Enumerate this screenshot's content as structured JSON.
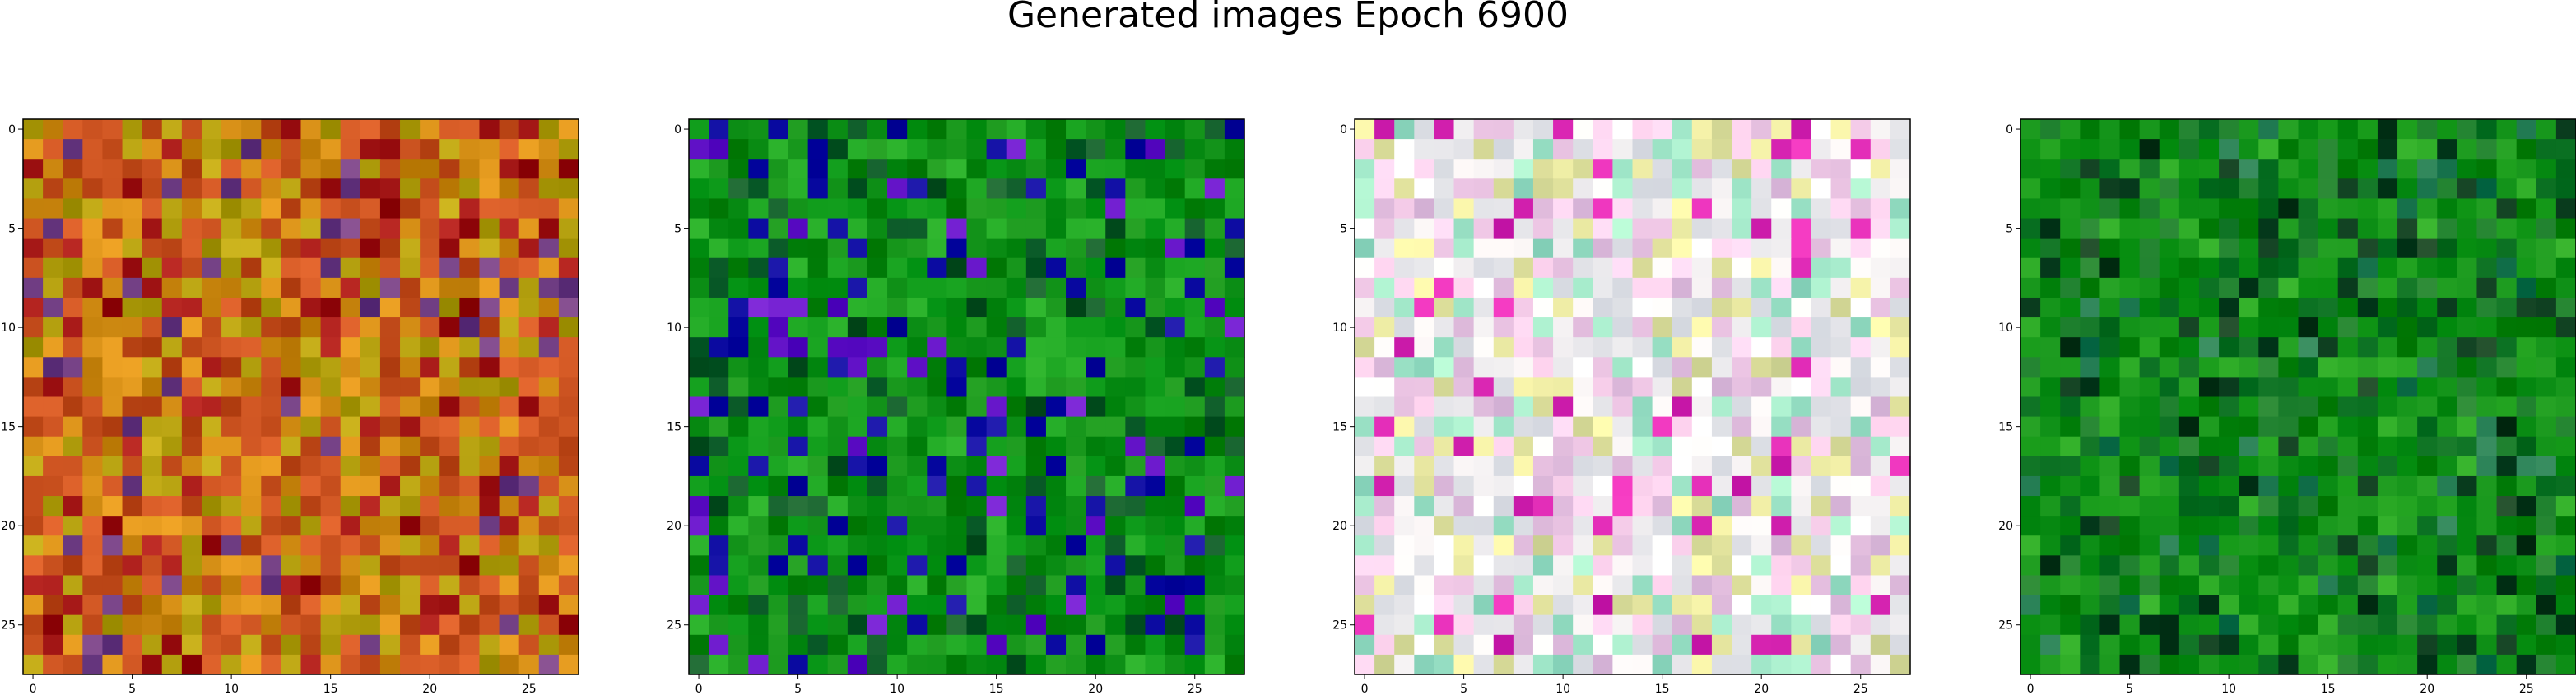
{
  "figure": {
    "title": "Generated images Epoch 6900"
  },
  "chart_data": [
    {
      "type": "heatmap",
      "grid": [
        28,
        28
      ],
      "title": "",
      "xlabel": "",
      "ylabel": "",
      "xlim": [
        -0.5,
        27.5
      ],
      "ylim": [
        27.5,
        -0.5
      ],
      "x_ticks": [
        0,
        5,
        10,
        15,
        20,
        25
      ],
      "y_ticks": [
        0,
        5,
        10,
        15,
        20,
        25
      ],
      "dominant_colors": [
        "#c8501e",
        "#d28c14",
        "#b4a00f",
        "#a01414",
        "#6e3c82"
      ],
      "palette_weights": [
        0.34,
        0.26,
        0.2,
        0.14,
        0.06
      ],
      "seed": 17
    },
    {
      "type": "heatmap",
      "grid": [
        28,
        28
      ],
      "title": "",
      "xlabel": "",
      "ylabel": "",
      "xlim": [
        -0.5,
        27.5
      ],
      "ylim": [
        27.5,
        -0.5
      ],
      "x_ticks": [
        0,
        5,
        10,
        15,
        20,
        25
      ],
      "y_ticks": [
        0,
        5,
        10,
        15,
        20,
        25
      ],
      "dominant_colors": [
        "#0a8c14",
        "#14a01e",
        "#0a5a28",
        "#0a0aa0",
        "#6414c8"
      ],
      "palette_weights": [
        0.42,
        0.26,
        0.14,
        0.12,
        0.06
      ],
      "seed": 42
    },
    {
      "type": "heatmap",
      "grid": [
        28,
        28
      ],
      "title": "",
      "xlabel": "",
      "ylabel": "",
      "xlim": [
        -0.5,
        27.5
      ],
      "ylim": [
        27.5,
        -0.5
      ],
      "x_ticks": [
        0,
        5,
        10,
        15,
        20,
        25
      ],
      "y_ticks": [
        0,
        5,
        10,
        15,
        20,
        25
      ],
      "dominant_colors": [
        "#f0eef0",
        "#f0c8e6",
        "#e6e6a0",
        "#a0e6c8",
        "#dc28b4"
      ],
      "palette_weights": [
        0.4,
        0.24,
        0.16,
        0.12,
        0.08
      ],
      "seed": 73
    },
    {
      "type": "heatmap",
      "grid": [
        28,
        28
      ],
      "title": "",
      "xlabel": "",
      "ylabel": "",
      "xlim": [
        -0.5,
        27.5
      ],
      "ylim": [
        27.5,
        -0.5
      ],
      "x_ticks": [
        0,
        5,
        10,
        15,
        20,
        25
      ],
      "y_ticks": [
        0,
        5,
        10,
        15,
        20,
        25
      ],
      "dominant_colors": [
        "#0a8c14",
        "#147828",
        "#1ea01e",
        "#0a3c1e",
        "#1e7850"
      ],
      "palette_weights": [
        0.42,
        0.24,
        0.16,
        0.12,
        0.06
      ],
      "seed": 99
    }
  ]
}
